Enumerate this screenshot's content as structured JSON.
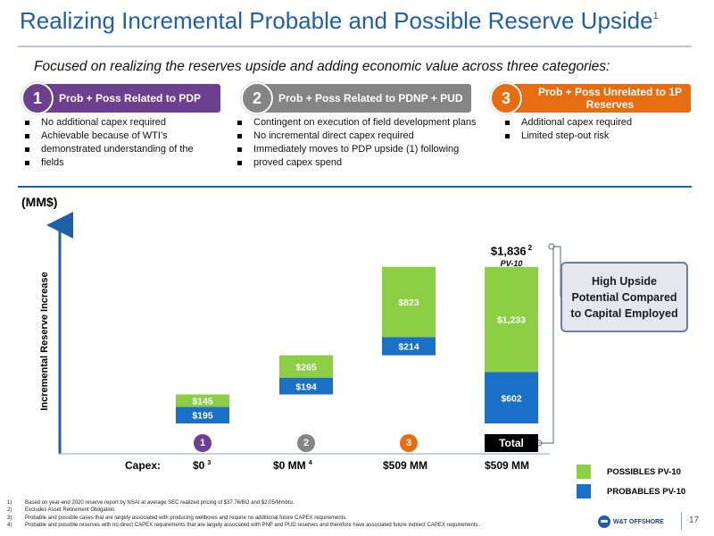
{
  "header": {
    "title": "Realizing Incremental Probable and Possible Reserve Upside",
    "title_sup": "1",
    "subtitle": "Focused on realizing the reserves upside and adding economic value across three categories:"
  },
  "categories": [
    {
      "number": "1",
      "label": "Prob + Poss Related to PDP",
      "color": "#6d3f8f",
      "bullets": [
        "No additional capex required",
        "Achievable because of WTI’s",
        "demonstrated understanding of the",
        "fields"
      ]
    },
    {
      "number": "2",
      "label": "Prob + Poss Related to PDNP + PUD",
      "color": "#858585",
      "bullets": [
        "Contingent on execution of field development plans",
        "No incremental direct capex required",
        "Immediately moves to PDP upside (1) following",
        "proved capex spend"
      ]
    },
    {
      "number": "3",
      "label_line1": "Prob + Poss Unrelated to 1P",
      "label_line2": "Reserves",
      "color": "#e66d12",
      "bullets": [
        "Additional capex required",
        "Limited step-out risk"
      ]
    }
  ],
  "chart_data": {
    "type": "bar",
    "stacked": true,
    "waterfall": true,
    "unit_label": "(MM$)",
    "ylabel": "Incremental Reserve Increase",
    "categories": [
      "1",
      "2",
      "3",
      "Total"
    ],
    "series": [
      {
        "name": "PROBABLES PV-10",
        "color": "#1a6fc7",
        "values": [
          195,
          194,
          214,
          602
        ],
        "labels": [
          "$195",
          "$194",
          "$214",
          "$602"
        ]
      },
      {
        "name": "POSSIBLES PV-10",
        "color": "#8ccf45",
        "values": [
          145,
          265,
          823,
          1233
        ],
        "labels": [
          "$145",
          "$265",
          "$823",
          "$1,233"
        ]
      }
    ],
    "total": {
      "label": "$1,836",
      "sup": "2",
      "sub_label": "PV-10"
    },
    "capex_label": "Capex:",
    "capex": [
      {
        "value": "$0",
        "sup": "3"
      },
      {
        "value": "$0 MM",
        "sup": "4"
      },
      {
        "value": "$509 MM",
        "sup": ""
      },
      {
        "value": "$509 MM",
        "sup": ""
      }
    ],
    "category_colors": [
      "#6d3f8f",
      "#858585",
      "#e66d12",
      "#000000"
    ],
    "legend": [
      "POSSIBLES PV-10",
      "PROBABLES PV-10"
    ]
  },
  "callout": {
    "line1": "High Upside",
    "line2": "Potential Compared",
    "line3": "to Capital Employed"
  },
  "footnotes": [
    {
      "n": "1)",
      "text": "Based on year-end 2020 reserve report by NSAI at average SEC realized pricing of $37.76/BO and $2.05/Mmbtu."
    },
    {
      "n": "2)",
      "text": "Excludes Asset Retirement Obligation."
    },
    {
      "n": "3)",
      "text": "Probable and possible cases that are largely associated with producing wellbores and require no additional future CAPEX requirements."
    },
    {
      "n": "4)",
      "text": "Probable and possible reserves with no direct CAPEX requirements that are largely associated with PNP and PUD reserves and therefore have associated future indirect CAPEX requirements."
    }
  ],
  "footer": {
    "logo_text": "W&T OFFSHORE",
    "page_number": "17"
  }
}
